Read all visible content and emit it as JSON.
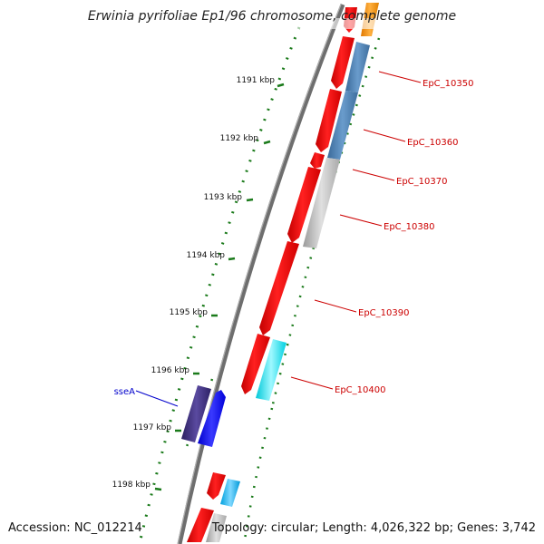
{
  "title": "Erwinia pyrifoliae Ep1/96 chromosome, complete genome",
  "accession": "Accession: NC_012214",
  "summary": "Topology: circular; Length: 4,026,322 bp; Genes: 3,742",
  "colors": {
    "backbone": "#777777",
    "tick": "#1a7a1a",
    "label_red": "#cc0000",
    "label_blue": "#0000cc"
  },
  "ticks": [
    "1191 kbp",
    "1192 kbp",
    "1193 kbp",
    "1194 kbp",
    "1195 kbp",
    "1196 kbp",
    "1197 kbp",
    "1198 kbp"
  ],
  "gene_labels": [
    "EpC_10350",
    "EpC_10360",
    "EpC_10370",
    "EpC_10380",
    "EpC_10390",
    "EpC_10400"
  ],
  "left_label": "sseA"
}
